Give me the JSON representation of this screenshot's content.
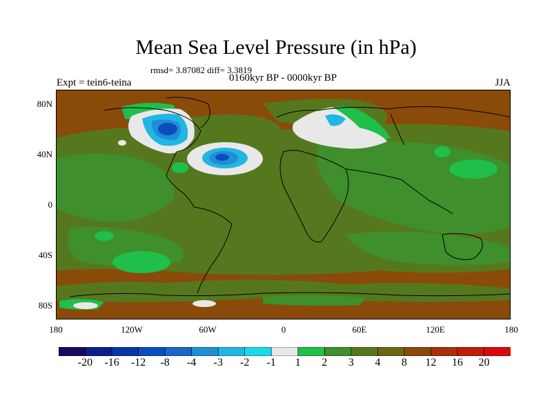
{
  "title": "Mean Sea Level Pressure (in hPa)",
  "stats": "rmsd= 3.87082 diff= 3.3819",
  "period": "0160kyr BP - 0000kyr BP",
  "expt": "Expt = tein6-teina",
  "season": "JJA",
  "lat_labels": [
    "80N",
    "40N",
    "0",
    "40S",
    "80S"
  ],
  "lon_labels": [
    "180",
    "120W",
    "60W",
    "0",
    "60E",
    "120E",
    "180"
  ],
  "colorbar": {
    "labels": [
      "-20",
      "-16",
      "-12",
      "-8",
      "-4",
      "-3",
      "-2",
      "-1",
      "1",
      "2",
      "3",
      "4",
      "8",
      "12",
      "16",
      "20"
    ],
    "colors": [
      "#1a0a5e",
      "#0a1f8a",
      "#0636a8",
      "#0a4dbf",
      "#1a66c8",
      "#1f8ed6",
      "#22b6e3",
      "#1ad8e8",
      "#e8e8e8",
      "#1fbf4a",
      "#3f8f2c",
      "#55781e",
      "#6b6614",
      "#8a4a0a",
      "#a8300a",
      "#c01d0a",
      "#d80a0a"
    ]
  },
  "colors": {
    "background": "#8a4a0a",
    "weak_positive": "#55781e",
    "moderate_positive": "#3f8f2c",
    "strong_positive": "#1fbf4a",
    "near_zero": "#e8e8e8",
    "neg_light": "#22b6e3",
    "neg_mid": "#1f8ed6",
    "neg_strong": "#0a4dbf"
  }
}
